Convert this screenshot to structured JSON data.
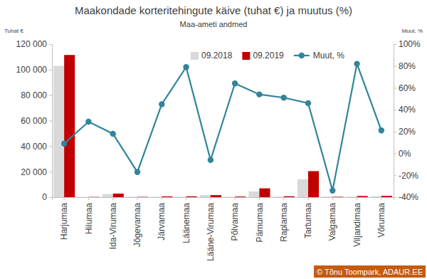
{
  "chart_data": {
    "type": "bar",
    "title": "Maakondade korteritehingute käive (tuhat €) ja muutus (%)",
    "subtitle": "Maa-ameti andmed",
    "y_label": "Tuhat €",
    "y2_label": "Muut, %",
    "credit": "© Tõnu Toompark, ADAUR.EE",
    "categories": [
      "Harjumaa",
      "Hiiumaa",
      "Ida-Virumaa",
      "Jõgevamaa",
      "Järvamaa",
      "Läänemaa",
      "Lääne-Virumaa",
      "Põlvamaa",
      "Pärnumaa",
      "Raplamaa",
      "Tartumaa",
      "Valgamaa",
      "Viljandimaa",
      "Võrumaa"
    ],
    "series": [
      {
        "name": "09.2018",
        "type": "bar",
        "color": "#d9d9d9",
        "values": [
          103000,
          150,
          2400,
          300,
          400,
          350,
          1700,
          300,
          4500,
          450,
          14000,
          450,
          500,
          800
        ]
      },
      {
        "name": "09.2019",
        "type": "bar",
        "color": "#c00000",
        "values": [
          111500,
          200,
          2800,
          250,
          600,
          650,
          1600,
          500,
          6900,
          700,
          20400,
          300,
          900,
          1000
        ]
      },
      {
        "name": "Muut, %",
        "type": "line",
        "axis": "y2",
        "color": "#31849b",
        "marker": "circle",
        "values": [
          9,
          29,
          18,
          -17,
          45,
          79,
          -6,
          64,
          54,
          51,
          46,
          -34,
          82,
          21
        ]
      }
    ],
    "ylim": [
      0,
      120000
    ],
    "yticks": [
      0,
      {
        "value": 20000,
        "label": "20 000"
      },
      {
        "value": 40000,
        "label": "40 000"
      },
      {
        "value": 60000,
        "label": "60 000"
      },
      {
        "value": 80000,
        "label": "80 000"
      },
      {
        "value": 100000,
        "label": "100 000"
      },
      {
        "value": 120000,
        "label": "120 000"
      }
    ],
    "y2lim": [
      -40,
      100
    ],
    "y2ticks": [
      {
        "value": -40,
        "label": "-40%"
      },
      {
        "value": -20,
        "label": "-20%"
      },
      {
        "value": 0,
        "label": "0%"
      },
      {
        "value": 20,
        "label": "20%"
      },
      {
        "value": 40,
        "label": "40%"
      },
      {
        "value": 60,
        "label": "60%"
      },
      {
        "value": 80,
        "label": "80%"
      },
      {
        "value": 100,
        "label": "100%"
      }
    ],
    "grid": false,
    "legend": "top-right"
  }
}
